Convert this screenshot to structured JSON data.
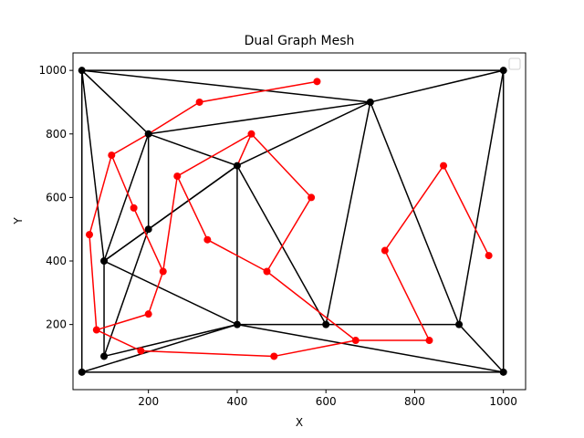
{
  "chart_data": {
    "type": "line",
    "title": "Dual Graph Mesh",
    "xlabel": "X",
    "ylabel": "Y",
    "xlim": [
      30,
      1050
    ],
    "ylim": [
      -5,
      1055
    ],
    "xticks": [
      200,
      400,
      600,
      800,
      1000
    ],
    "yticks": [
      200,
      400,
      600,
      800,
      1000
    ],
    "grid": false,
    "legend": "top-right",
    "legend_entries": [],
    "colors": {
      "mesh": "#000000",
      "dual": "#ff0000"
    },
    "mesh_vertices": [
      {
        "x": 50,
        "y": 1000
      },
      {
        "x": 1000,
        "y": 1000
      },
      {
        "x": 700,
        "y": 900
      },
      {
        "x": 200,
        "y": 800
      },
      {
        "x": 400,
        "y": 700
      },
      {
        "x": 200,
        "y": 500
      },
      {
        "x": 100,
        "y": 400
      },
      {
        "x": 400,
        "y": 200
      },
      {
        "x": 600,
        "y": 200
      },
      {
        "x": 900,
        "y": 200
      },
      {
        "x": 100,
        "y": 100
      },
      {
        "x": 50,
        "y": 50
      },
      {
        "x": 1000,
        "y": 50
      }
    ],
    "mesh_edges": [
      [
        [
          50,
          1000
        ],
        [
          1000,
          1000
        ]
      ],
      [
        [
          1000,
          1000
        ],
        [
          1000,
          50
        ]
      ],
      [
        [
          1000,
          50
        ],
        [
          50,
          50
        ]
      ],
      [
        [
          50,
          50
        ],
        [
          50,
          1000
        ]
      ],
      [
        [
          50,
          1000
        ],
        [
          700,
          900
        ]
      ],
      [
        [
          700,
          900
        ],
        [
          1000,
          1000
        ]
      ],
      [
        [
          50,
          1000
        ],
        [
          200,
          800
        ]
      ],
      [
        [
          200,
          800
        ],
        [
          700,
          900
        ]
      ],
      [
        [
          200,
          800
        ],
        [
          400,
          700
        ]
      ],
      [
        [
          400,
          700
        ],
        [
          700,
          900
        ]
      ],
      [
        [
          50,
          1000
        ],
        [
          100,
          400
        ]
      ],
      [
        [
          100,
          400
        ],
        [
          200,
          800
        ]
      ],
      [
        [
          200,
          800
        ],
        [
          200,
          500
        ]
      ],
      [
        [
          200,
          500
        ],
        [
          400,
          700
        ]
      ],
      [
        [
          100,
          400
        ],
        [
          200,
          500
        ]
      ],
      [
        [
          100,
          400
        ],
        [
          400,
          700
        ]
      ],
      [
        [
          400,
          700
        ],
        [
          400,
          200
        ]
      ],
      [
        [
          400,
          700
        ],
        [
          600,
          200
        ]
      ],
      [
        [
          600,
          200
        ],
        [
          700,
          900
        ]
      ],
      [
        [
          700,
          900
        ],
        [
          900,
          200
        ]
      ],
      [
        [
          900,
          200
        ],
        [
          1000,
          1000
        ]
      ],
      [
        [
          900,
          200
        ],
        [
          1000,
          50
        ]
      ],
      [
        [
          600,
          200
        ],
        [
          900,
          200
        ]
      ],
      [
        [
          400,
          200
        ],
        [
          600,
          200
        ]
      ],
      [
        [
          400,
          200
        ],
        [
          1000,
          50
        ]
      ],
      [
        [
          100,
          400
        ],
        [
          400,
          200
        ]
      ],
      [
        [
          200,
          500
        ],
        [
          100,
          100
        ]
      ],
      [
        [
          100,
          100
        ],
        [
          400,
          200
        ]
      ],
      [
        [
          50,
          50
        ],
        [
          400,
          200
        ]
      ],
      [
        [
          100,
          400
        ],
        [
          100,
          100
        ]
      ]
    ],
    "dual_vertices": [
      {
        "x": 580,
        "y": 965
      },
      {
        "x": 315,
        "y": 900
      },
      {
        "x": 432,
        "y": 800
      },
      {
        "x": 865,
        "y": 700
      },
      {
        "x": 117,
        "y": 733
      },
      {
        "x": 265,
        "y": 667
      },
      {
        "x": 167,
        "y": 567
      },
      {
        "x": 567,
        "y": 600
      },
      {
        "x": 333,
        "y": 467
      },
      {
        "x": 733,
        "y": 433
      },
      {
        "x": 967,
        "y": 417
      },
      {
        "x": 67,
        "y": 483
      },
      {
        "x": 233,
        "y": 367
      },
      {
        "x": 467,
        "y": 367
      },
      {
        "x": 200,
        "y": 233
      },
      {
        "x": 83,
        "y": 183
      },
      {
        "x": 183,
        "y": 117
      },
      {
        "x": 483,
        "y": 100
      },
      {
        "x": 667,
        "y": 150
      },
      {
        "x": 833,
        "y": 150
      }
    ],
    "dual_edges": [
      [
        [
          580,
          965
        ],
        [
          315,
          900
        ]
      ],
      [
        [
          315,
          900
        ],
        [
          200,
          800
        ]
      ],
      [
        [
          200,
          800
        ],
        [
          117,
          733
        ]
      ],
      [
        [
          117,
          733
        ],
        [
          167,
          567
        ]
      ],
      [
        [
          167,
          567
        ],
        [
          233,
          367
        ]
      ],
      [
        [
          233,
          367
        ],
        [
          265,
          667
        ]
      ],
      [
        [
          265,
          667
        ],
        [
          432,
          800
        ]
      ],
      [
        [
          432,
          800
        ],
        [
          567,
          600
        ]
      ],
      [
        [
          567,
          600
        ],
        [
          467,
          367
        ]
      ],
      [
        [
          467,
          367
        ],
        [
          333,
          467
        ]
      ],
      [
        [
          333,
          467
        ],
        [
          265,
          667
        ]
      ],
      [
        [
          117,
          733
        ],
        [
          67,
          483
        ]
      ],
      [
        [
          67,
          483
        ],
        [
          83,
          183
        ]
      ],
      [
        [
          83,
          183
        ],
        [
          183,
          117
        ]
      ],
      [
        [
          83,
          183
        ],
        [
          200,
          233
        ]
      ],
      [
        [
          200,
          233
        ],
        [
          233,
          367
        ]
      ],
      [
        [
          183,
          117
        ],
        [
          483,
          100
        ]
      ],
      [
        [
          483,
          100
        ],
        [
          667,
          150
        ]
      ],
      [
        [
          667,
          150
        ],
        [
          833,
          150
        ]
      ],
      [
        [
          833,
          150
        ],
        [
          733,
          433
        ]
      ],
      [
        [
          733,
          433
        ],
        [
          865,
          700
        ]
      ],
      [
        [
          865,
          700
        ],
        [
          967,
          417
        ]
      ],
      [
        [
          467,
          367
        ],
        [
          667,
          150
        ]
      ],
      [
        [
          432,
          800
        ],
        [
          400,
          700
        ]
      ]
    ]
  }
}
